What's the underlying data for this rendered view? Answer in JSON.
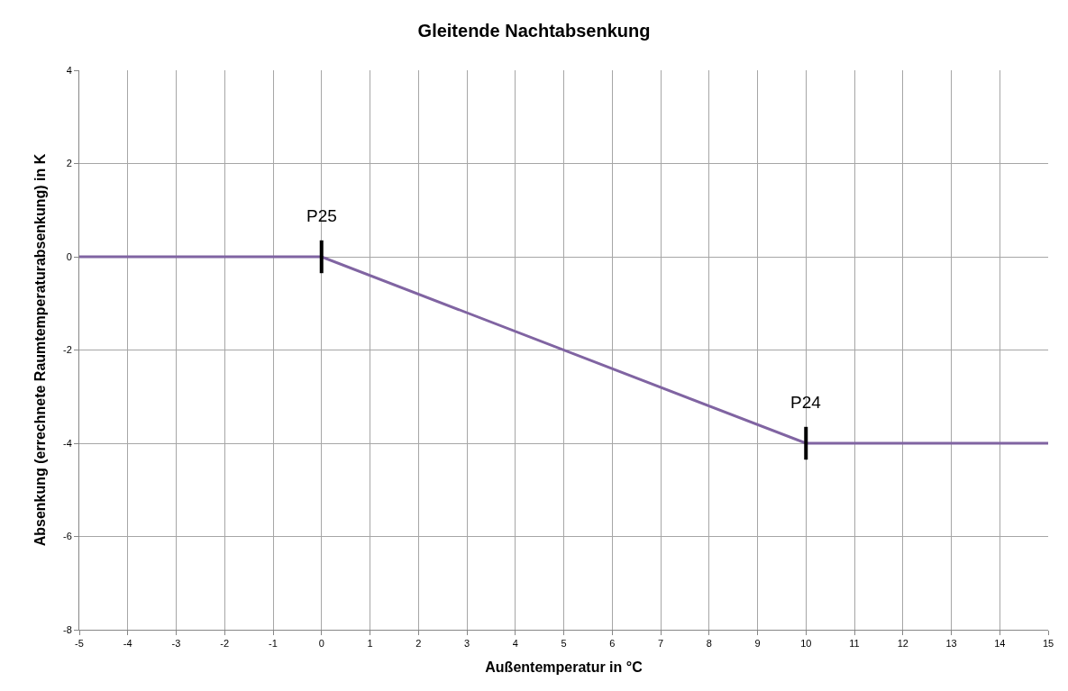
{
  "chart_data": {
    "type": "line",
    "title": "Gleitende Nachtabsenkung",
    "xlabel": "Außentemperatur in °C",
    "ylabel": "Absenkung (errechnete Raumtemperaturabsenkung) in K",
    "x": [
      -5,
      0,
      10,
      15
    ],
    "series": [
      {
        "color": "#8064a2",
        "values": [
          0,
          0,
          -4,
          -4
        ]
      }
    ],
    "xlim": [
      -5,
      15
    ],
    "xticks": [
      -5,
      -4,
      -3,
      -2,
      -1,
      0,
      1,
      2,
      3,
      4,
      5,
      6,
      7,
      8,
      9,
      10,
      11,
      12,
      13,
      14,
      15
    ],
    "ylim": [
      -8,
      4
    ],
    "yticks": [
      -8,
      -6,
      -4,
      -2,
      0,
      2,
      4
    ],
    "grid": true,
    "marker": "none",
    "line_style": "solid",
    "annotations": [
      {
        "text": "P25",
        "x": 0,
        "y": 0
      },
      {
        "text": "P24",
        "x": 10,
        "y": -4
      }
    ]
  }
}
